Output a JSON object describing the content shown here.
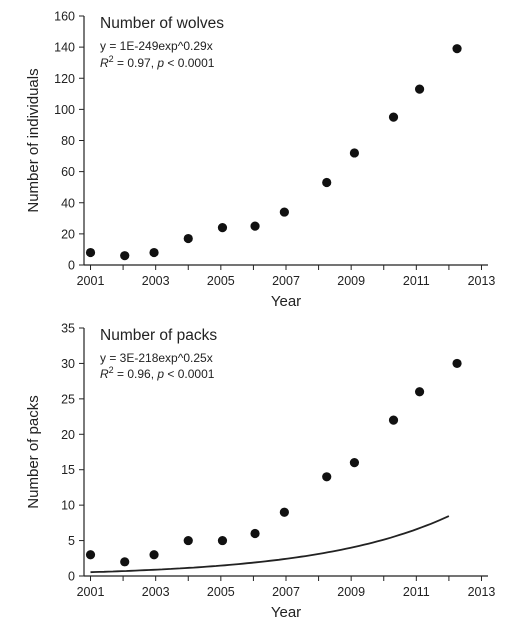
{
  "chart_data": [
    {
      "type": "scatter",
      "title": "Number of wolves",
      "equation": "y = 1E-249exp^0.29x",
      "r2_label": "R",
      "r2_sup": "2",
      "r2_rest": " = 0.97, ",
      "p_label": "p",
      "p_rest": " < 0.0001",
      "xlabel": "Year",
      "ylabel": "Number of individuals",
      "xlim": [
        2000.8,
        2013.2
      ],
      "ylim": [
        0,
        160
      ],
      "xticks": [
        2001,
        2003,
        2005,
        2007,
        2009,
        2011,
        2013
      ],
      "yticks": [
        0,
        20,
        40,
        60,
        80,
        100,
        120,
        140,
        160
      ],
      "x": [
        2001,
        2002,
        2003,
        2004,
        2005,
        2006,
        2007,
        2008,
        2009,
        2010,
        2011,
        2012
      ],
      "values": [
        8,
        6,
        8,
        17,
        24,
        25,
        34,
        53,
        72,
        95,
        113,
        139
      ],
      "fit": {
        "a": 1e-249,
        "b": 0.29,
        "x_range": [
          2001,
          2012
        ]
      }
    },
    {
      "type": "scatter",
      "title": "Number of packs",
      "equation": "y = 3E-218exp^0.25x",
      "r2_label": "R",
      "r2_sup": "2",
      "r2_rest": " = 0.96, ",
      "p_label": "p",
      "p_rest": " < 0.0001",
      "xlabel": "Year",
      "ylabel": "Number of packs",
      "xlim": [
        2000.8,
        2013.2
      ],
      "ylim": [
        0,
        35
      ],
      "xticks": [
        2001,
        2003,
        2005,
        2007,
        2009,
        2011,
        2013
      ],
      "yticks": [
        0,
        5,
        10,
        15,
        20,
        25,
        30,
        35
      ],
      "x": [
        2001,
        2002,
        2003,
        2004,
        2005,
        2006,
        2007,
        2008,
        2009,
        2010,
        2011,
        2012
      ],
      "values": [
        3,
        2,
        3,
        5,
        5,
        6,
        9,
        14,
        16,
        22,
        26,
        30
      ],
      "fit": {
        "a": 3e-218,
        "b": 0.25,
        "x_range": [
          2001,
          2012
        ]
      }
    }
  ]
}
